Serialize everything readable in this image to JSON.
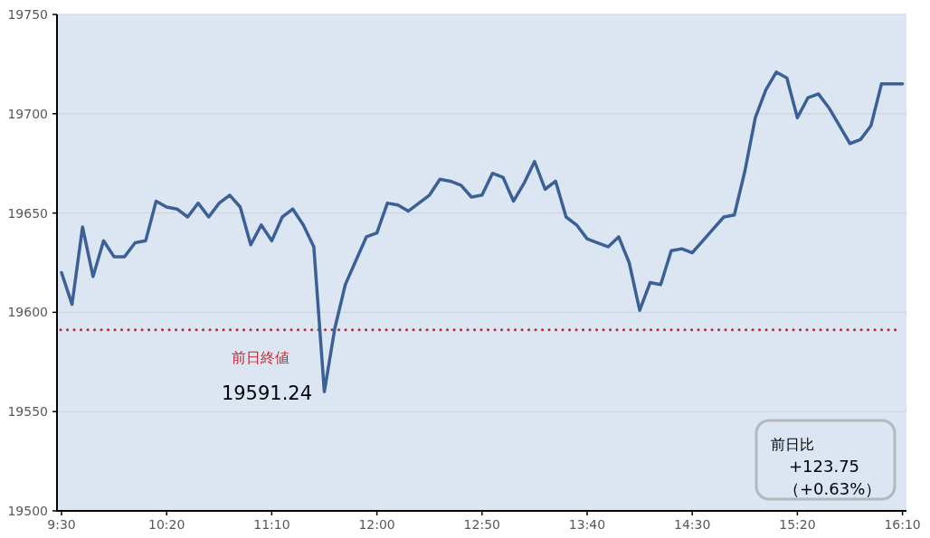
{
  "chart_data": {
    "type": "line",
    "categories": [
      "9:30",
      null,
      null,
      null,
      null,
      null,
      null,
      null,
      null,
      null,
      "10:20",
      null,
      null,
      null,
      null,
      null,
      null,
      null,
      null,
      null,
      "11:10",
      null,
      null,
      null,
      null,
      null,
      null,
      null,
      null,
      null,
      "12:00",
      null,
      null,
      null,
      null,
      null,
      null,
      null,
      null,
      null,
      "12:50",
      null,
      null,
      null,
      null,
      null,
      null,
      null,
      null,
      null,
      "13:40",
      null,
      null,
      null,
      null,
      null,
      null,
      null,
      null,
      null,
      "14:30",
      null,
      null,
      null,
      null,
      null,
      null,
      null,
      null,
      null,
      "15:20",
      null,
      null,
      null,
      null,
      null,
      null,
      null,
      null,
      null,
      "16:10"
    ],
    "series": [
      {
        "color": "#3a6095",
        "values": [
          19620,
          19604,
          19643,
          19618,
          19636,
          19628,
          19628,
          19635,
          19636,
          19656,
          19653,
          19652,
          19648,
          19655,
          19648,
          19655,
          19659,
          19653,
          19634,
          19644,
          19636,
          19648,
          19652,
          19644,
          19633,
          19560,
          19592,
          19614,
          19626,
          19638,
          19640,
          19655,
          19654,
          19651,
          19655,
          19659,
          19667,
          19666,
          19664,
          19658,
          19659,
          19670,
          19668,
          19656,
          19665,
          19676,
          19662,
          19666,
          19648,
          19644,
          19637,
          19635,
          19633,
          19638,
          19625,
          19601,
          19615,
          19614,
          19631,
          19632,
          19630,
          19636,
          19642,
          19648,
          19649,
          19671,
          19698,
          19712,
          19721,
          19718,
          19698,
          19708,
          19710,
          19703,
          19694,
          19685,
          19687,
          19694,
          19715,
          19715,
          19715
        ]
      }
    ],
    "ylim": [
      19500,
      19750
    ],
    "yticks": [
      19500,
      19550,
      19600,
      19650,
      19700,
      19750
    ],
    "grid": "y",
    "ref_lines": [
      {
        "axis": "y",
        "value": 19591.24,
        "label": "前日終値",
        "color": "#c0282d",
        "line_style": "dotted"
      }
    ],
    "annotations": [
      "19591.24",
      "前日比",
      "+123.75",
      "（+0.63%）"
    ]
  }
}
